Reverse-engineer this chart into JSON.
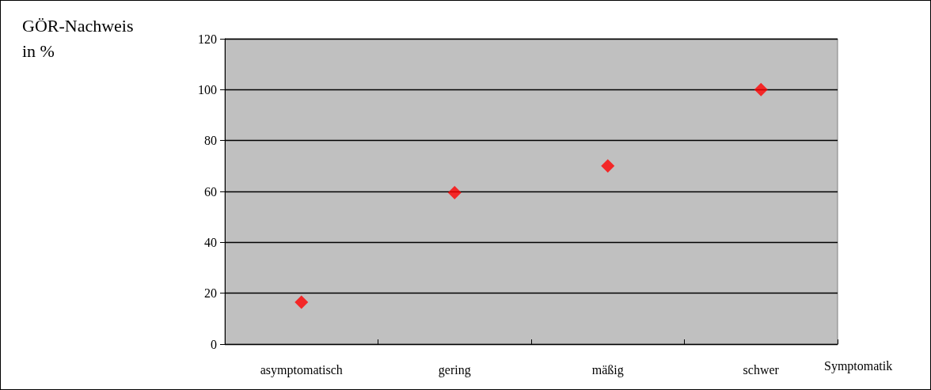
{
  "chart_data": {
    "type": "scatter",
    "ylabel": "GÖR-Nachweis in %",
    "xlabel": "Symptomatik",
    "categories": [
      "asymptomatisch",
      "gering",
      "mäßig",
      "schwer"
    ],
    "series": [
      {
        "color": "#ff0000",
        "values": [
          16.5,
          59.5,
          70,
          100
        ]
      }
    ],
    "ylim": [
      0,
      120
    ],
    "yticks": [
      0,
      20,
      40,
      60,
      80,
      100,
      120
    ],
    "grid": "y",
    "marker": "diamond"
  }
}
